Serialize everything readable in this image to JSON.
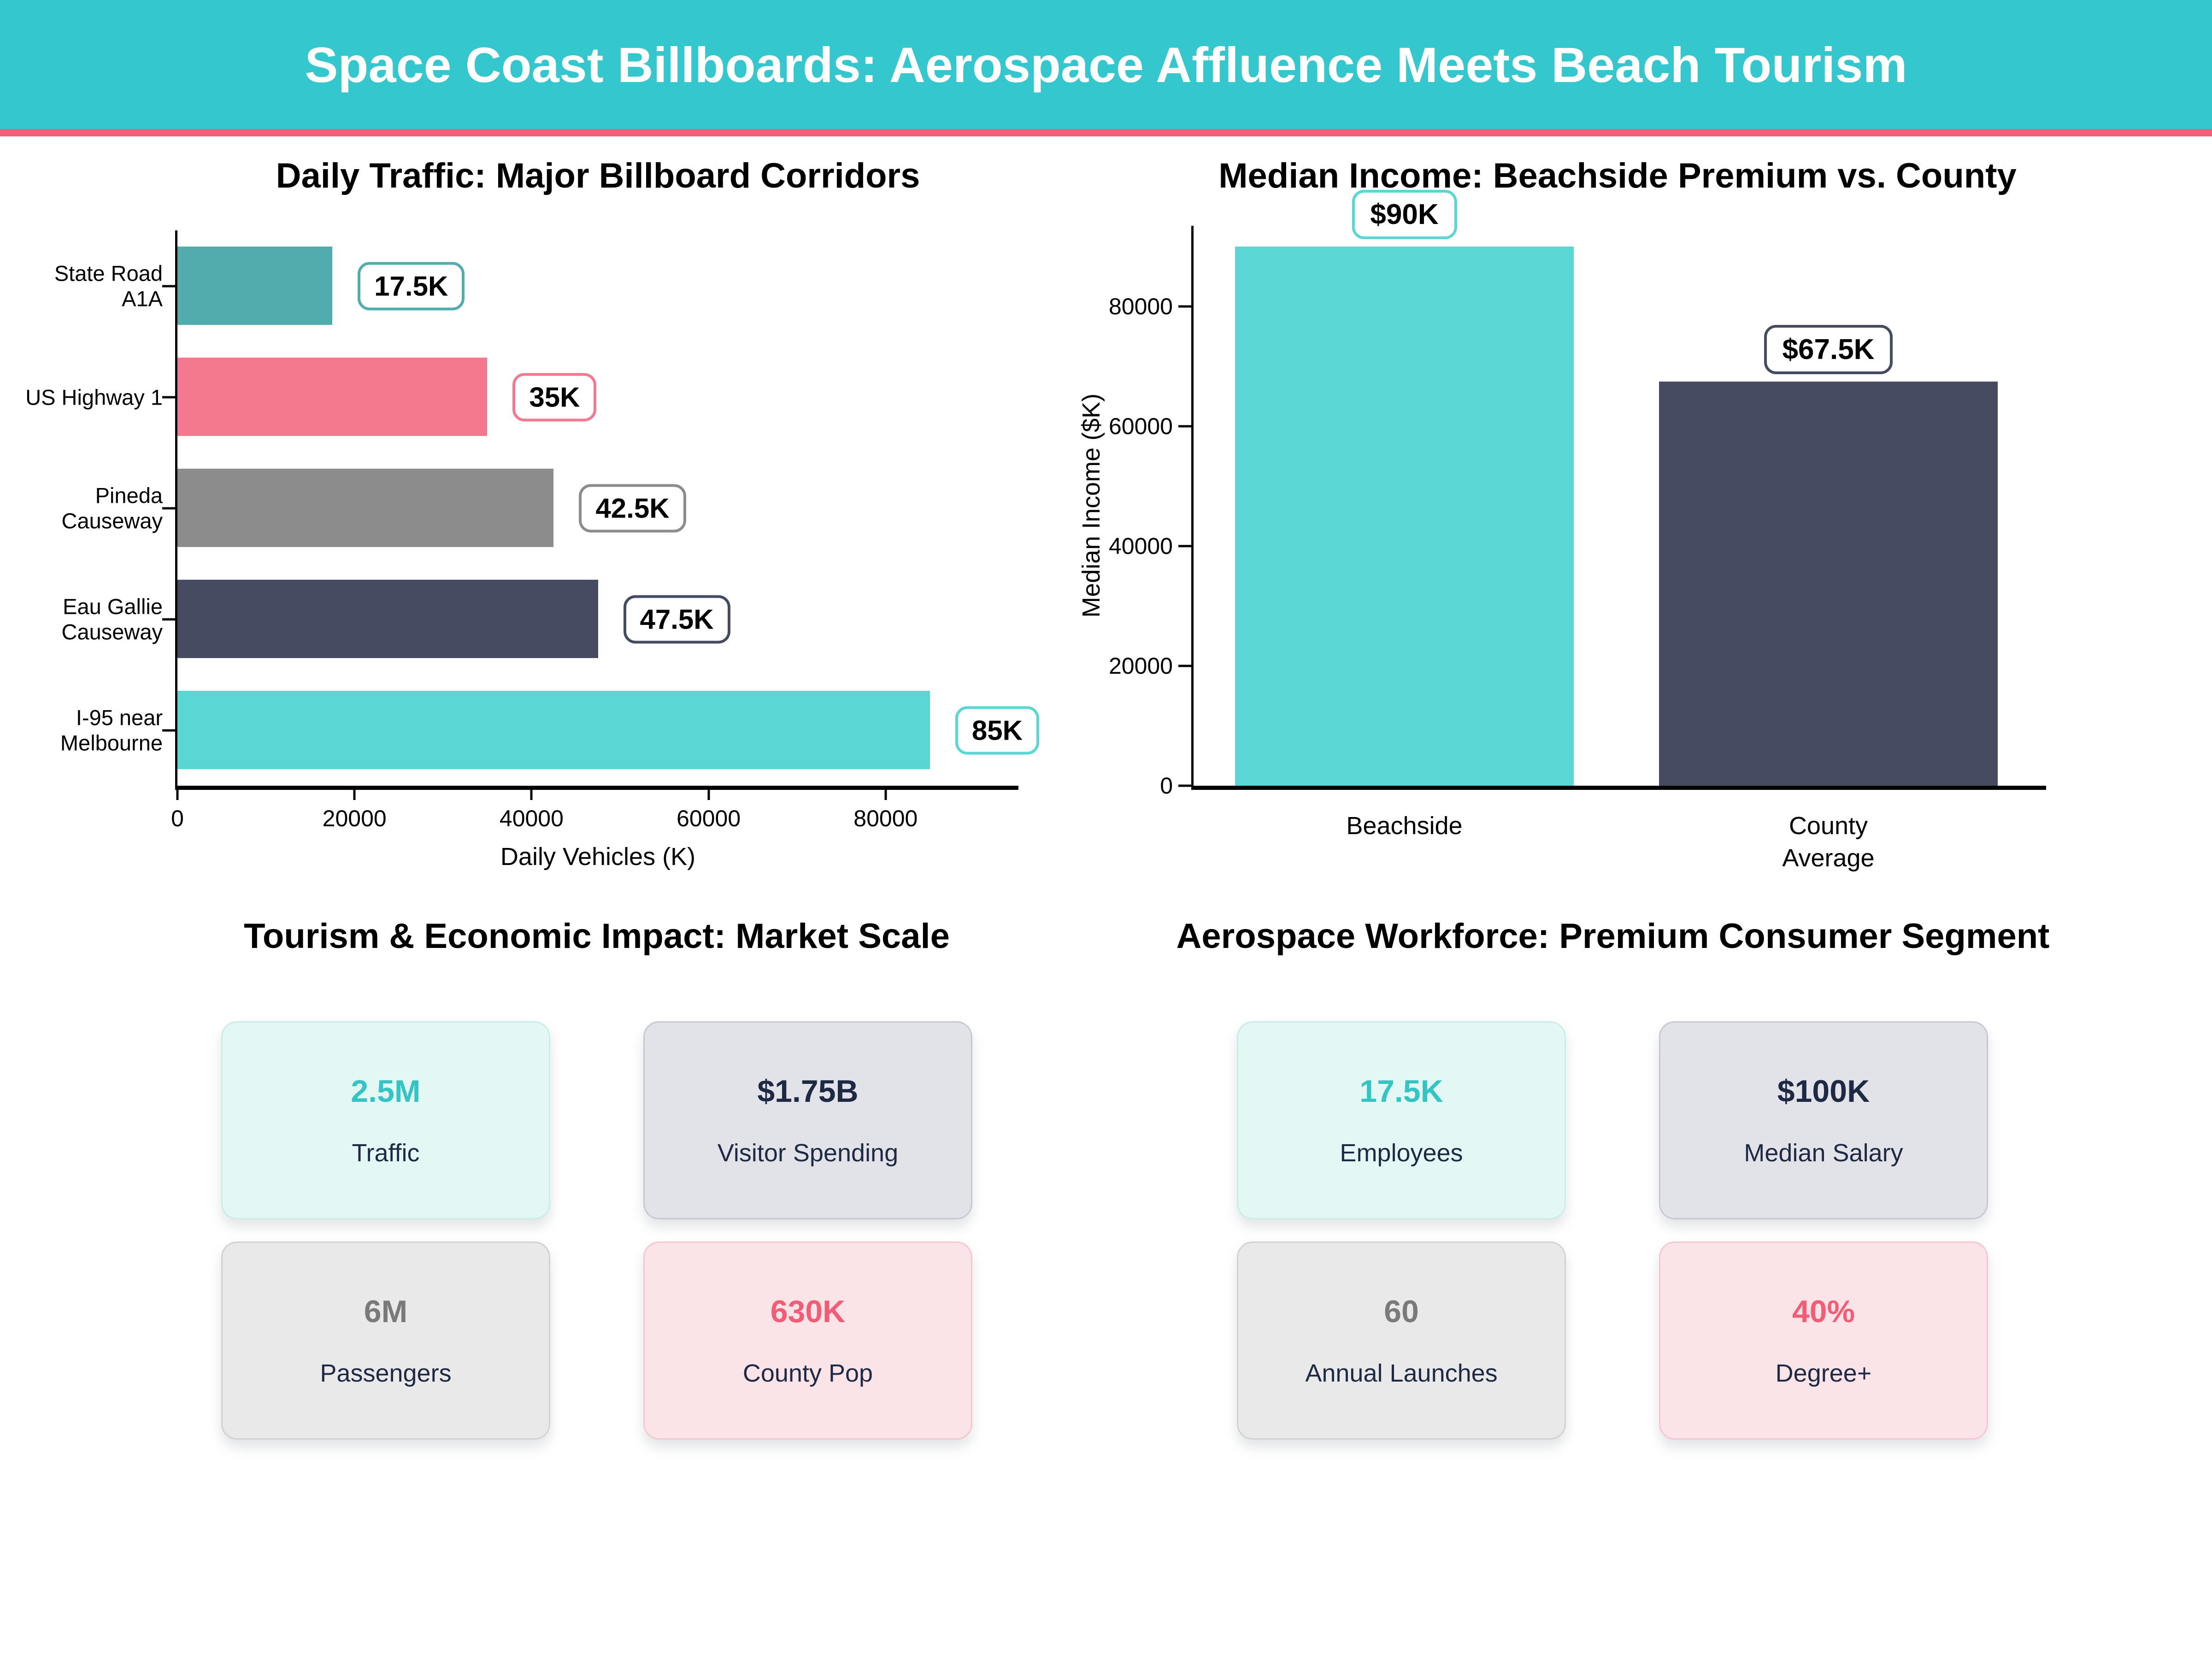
{
  "header": {
    "title": "Space Coast Billboards: Aerospace Affluence Meets Beach Tourism",
    "bg_color": "#34C8CE",
    "accent_color": "#F0607A",
    "text_color": "#ffffff"
  },
  "chart_data": [
    {
      "type": "bar",
      "orientation": "horizontal",
      "title": "Daily Traffic: Major Billboard Corridors",
      "categories": [
        "State Road\nA1A",
        "US Highway 1",
        "Pineda\nCauseway",
        "Eau Gallie\nCauseway",
        "I-95 near\nMelbourne"
      ],
      "values": [
        17500,
        35000,
        42500,
        47500,
        85000
      ],
      "value_labels": [
        "17.5K",
        "35K",
        "42.5K",
        "47.5K",
        "85K"
      ],
      "bar_colors": [
        "#52ABAC",
        "#F4798F",
        "#8C8C8C",
        "#454B61",
        "#5AD6D4"
      ],
      "xlabel": "Daily Vehicles (K)",
      "ylabel": "",
      "xlim": [
        0,
        95000
      ],
      "xticks": [
        0,
        20000,
        40000,
        60000,
        80000
      ],
      "grid": false,
      "legend": "none"
    },
    {
      "type": "bar",
      "orientation": "vertical",
      "title": "Median Income: Beachside Premium vs. County",
      "categories": [
        "Beachside",
        "County\nAverage"
      ],
      "values": [
        90000,
        67500
      ],
      "value_labels": [
        "$90K",
        "$67.5K"
      ],
      "bar_colors": [
        "#5AD6D4",
        "#454B61"
      ],
      "xlabel": "",
      "ylabel": "Median Income ($K)",
      "ylim": [
        0,
        93500
      ],
      "yticks": [
        0,
        20000,
        40000,
        60000,
        80000
      ],
      "grid": false,
      "legend": "none"
    }
  ],
  "sections": [
    {
      "title": "Tourism & Economic Impact: Market Scale",
      "cards": [
        {
          "value": "2.5M",
          "label": "Traffic",
          "value_color": "#35C4C4",
          "bg": "#E3F7F4",
          "border": "#CBEDE8"
        },
        {
          "value": "$1.75B",
          "label": "Visitor Spending",
          "value_color": "#1E2A44",
          "bg": "#E2E3E8",
          "border": "#C6C9D2"
        },
        {
          "value": "6M",
          "label": "Passengers",
          "value_color": "#7A7A7A",
          "bg": "#E9E9E9",
          "border": "#D2D2D2"
        },
        {
          "value": "630K",
          "label": "County Pop",
          "value_color": "#F25C74",
          "bg": "#FBE4E8",
          "border": "#F6C7D1"
        }
      ]
    },
    {
      "title": "Aerospace Workforce: Premium Consumer Segment",
      "cards": [
        {
          "value": "17.5K",
          "label": "Employees",
          "value_color": "#35C4C4",
          "bg": "#E3F7F4",
          "border": "#CBEDE8"
        },
        {
          "value": "$100K",
          "label": "Median Salary",
          "value_color": "#1E2A44",
          "bg": "#E2E3E8",
          "border": "#C6C9D2"
        },
        {
          "value": "60",
          "label": "Annual Launches",
          "value_color": "#7A7A7A",
          "bg": "#E9E9E9",
          "border": "#D2D2D2"
        },
        {
          "value": "40%",
          "label": "Degree+",
          "value_color": "#F25C74",
          "bg": "#FBE4E8",
          "border": "#F6C7D1"
        }
      ]
    }
  ]
}
